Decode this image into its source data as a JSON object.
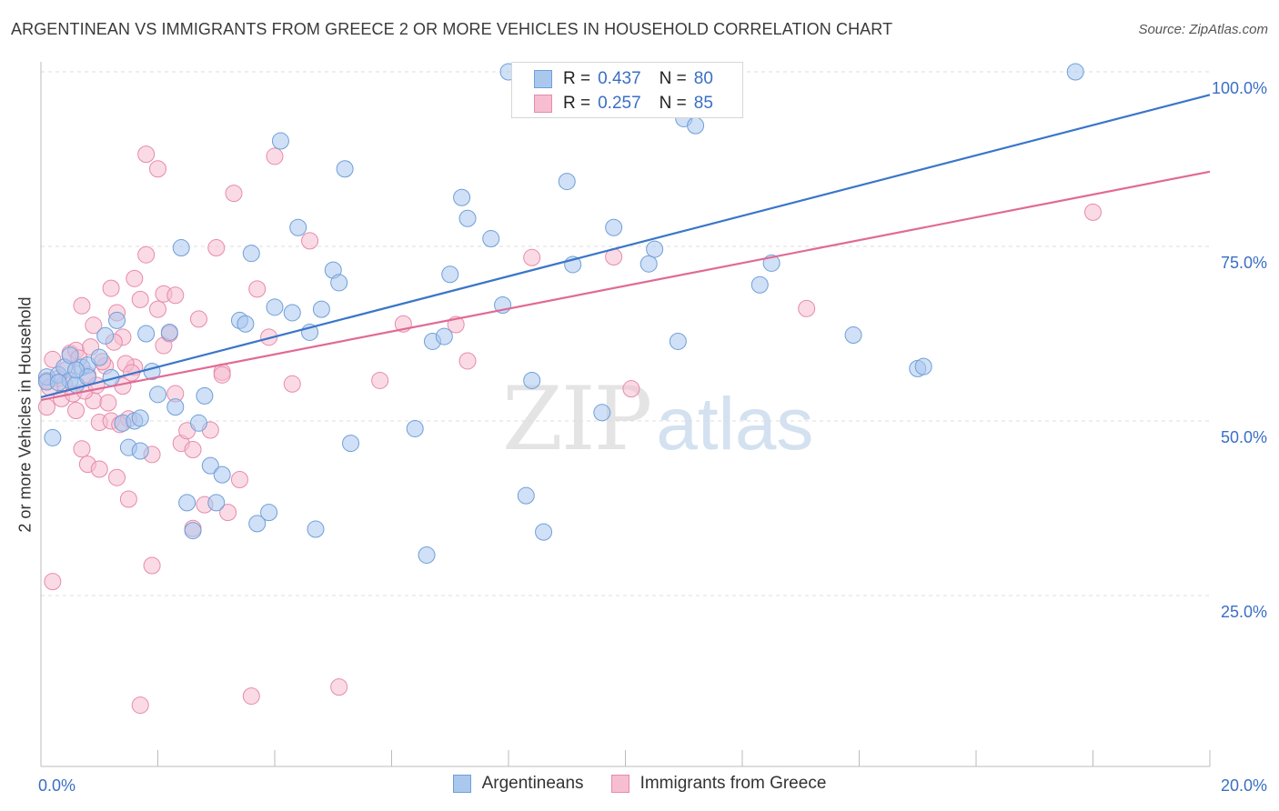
{
  "title": "ARGENTINEAN VS IMMIGRANTS FROM GREECE 2 OR MORE VEHICLES IN HOUSEHOLD CORRELATION CHART",
  "source": "Source: ZipAtlas.com",
  "watermark": {
    "zip": "ZIP",
    "atlas": "atlas"
  },
  "legend_top": {
    "rows": [
      {
        "r_label": "R =",
        "r_value": "0.437",
        "n_label": "N =",
        "n_value": "80"
      },
      {
        "r_label": "R =",
        "r_value": "0.257",
        "n_label": "N =",
        "n_value": "85"
      }
    ]
  },
  "colors": {
    "blue_fill": "#aac7ee",
    "blue_stroke": "#6f9fd8",
    "blue_line": "#3a76c9",
    "pink_fill": "#f6bed0",
    "pink_stroke": "#e88aab",
    "pink_line": "#e06a95",
    "tick_label": "#3a6fc4",
    "grid": "#dddddd"
  },
  "chart_data": {
    "type": "scatter",
    "title": "ARGENTINEAN VS IMMIGRANTS FROM GREECE 2 OR MORE VEHICLES IN HOUSEHOLD CORRELATION CHART",
    "ylabel": "2 or more Vehicles in Household",
    "xlabel": "",
    "xlim": [
      0,
      20
    ],
    "ylim": [
      0,
      100
    ],
    "x_tick_labels": [
      "0.0%",
      "20.0%"
    ],
    "y_tick_labels": [
      "100.0%",
      "75.0%",
      "50.0%",
      "25.0%"
    ],
    "y_ticks": [
      100,
      75,
      50,
      25
    ],
    "grid": "horizontal dashed",
    "legend_placement": "top-center and bottom",
    "series": [
      {
        "name": "Argentineans",
        "r": 0.437,
        "n": 80,
        "trend": {
          "x": [
            0,
            20
          ],
          "y": [
            53.4,
            96.7
          ]
        },
        "points": [
          [
            0.1,
            56.3
          ],
          [
            0.1,
            55.6
          ],
          [
            0.2,
            47.6
          ],
          [
            0.3,
            56.6
          ],
          [
            0.4,
            57.7
          ],
          [
            0.5,
            59.4
          ],
          [
            0.5,
            55.8
          ],
          [
            0.6,
            55.2
          ],
          [
            0.7,
            57.7
          ],
          [
            0.8,
            58.0
          ],
          [
            0.8,
            56.3
          ],
          [
            1.0,
            59.1
          ],
          [
            1.1,
            62.2
          ],
          [
            1.3,
            64.4
          ],
          [
            1.4,
            49.7
          ],
          [
            1.5,
            46.2
          ],
          [
            1.6,
            50.0
          ],
          [
            1.7,
            45.7
          ],
          [
            1.7,
            50.4
          ],
          [
            1.8,
            62.5
          ],
          [
            1.9,
            57.1
          ],
          [
            2.0,
            53.8
          ],
          [
            2.2,
            62.7
          ],
          [
            2.3,
            52.0
          ],
          [
            2.4,
            74.8
          ],
          [
            2.5,
            38.3
          ],
          [
            2.6,
            34.3
          ],
          [
            2.7,
            49.7
          ],
          [
            2.8,
            53.6
          ],
          [
            2.9,
            43.6
          ],
          [
            3.0,
            38.3
          ],
          [
            3.1,
            42.3
          ],
          [
            3.4,
            64.4
          ],
          [
            3.5,
            63.9
          ],
          [
            3.6,
            74.0
          ],
          [
            3.7,
            35.3
          ],
          [
            3.9,
            36.9
          ],
          [
            4.0,
            66.3
          ],
          [
            4.1,
            90.1
          ],
          [
            4.3,
            65.5
          ],
          [
            4.4,
            77.7
          ],
          [
            4.6,
            62.7
          ],
          [
            4.7,
            34.5
          ],
          [
            4.8,
            66.0
          ],
          [
            5.0,
            71.6
          ],
          [
            5.1,
            69.8
          ],
          [
            5.2,
            86.1
          ],
          [
            5.3,
            46.8
          ],
          [
            6.4,
            48.9
          ],
          [
            6.6,
            30.8
          ],
          [
            6.7,
            61.4
          ],
          [
            6.9,
            62.1
          ],
          [
            7.0,
            71.0
          ],
          [
            7.2,
            82.0
          ],
          [
            7.3,
            79.0
          ],
          [
            7.7,
            76.1
          ],
          [
            7.9,
            66.6
          ],
          [
            8.0,
            100.0
          ],
          [
            8.2,
            95.3
          ],
          [
            8.3,
            39.3
          ],
          [
            8.4,
            55.8
          ],
          [
            8.6,
            34.1
          ],
          [
            9.0,
            84.3
          ],
          [
            9.1,
            72.4
          ],
          [
            9.6,
            51.2
          ],
          [
            9.8,
            77.7
          ],
          [
            10.4,
            72.5
          ],
          [
            10.5,
            74.6
          ],
          [
            10.9,
            61.4
          ],
          [
            11.0,
            93.3
          ],
          [
            11.2,
            92.3
          ],
          [
            12.3,
            69.5
          ],
          [
            12.5,
            72.6
          ],
          [
            13.9,
            62.3
          ],
          [
            15.0,
            57.5
          ],
          [
            15.1,
            57.8
          ],
          [
            17.7,
            100.0
          ],
          [
            0.3,
            55.5
          ],
          [
            0.6,
            57.3
          ],
          [
            1.2,
            56.2
          ]
        ]
      },
      {
        "name": "Immigrants from Greece",
        "r": 0.257,
        "n": 85,
        "trend": {
          "x": [
            0,
            20
          ],
          "y": [
            53.0,
            85.7
          ]
        },
        "points": [
          [
            0.1,
            52.0
          ],
          [
            0.1,
            55.8
          ],
          [
            0.2,
            27.0
          ],
          [
            0.2,
            58.8
          ],
          [
            0.3,
            56.1
          ],
          [
            0.4,
            55.3
          ],
          [
            0.5,
            59.7
          ],
          [
            0.6,
            60.1
          ],
          [
            0.6,
            51.5
          ],
          [
            0.7,
            66.5
          ],
          [
            0.7,
            46.0
          ],
          [
            0.8,
            43.8
          ],
          [
            0.8,
            56.6
          ],
          [
            0.9,
            63.7
          ],
          [
            0.9,
            52.9
          ],
          [
            1.0,
            49.8
          ],
          [
            1.0,
            43.1
          ],
          [
            1.1,
            57.9
          ],
          [
            1.2,
            50.0
          ],
          [
            1.2,
            69.0
          ],
          [
            1.3,
            41.9
          ],
          [
            1.3,
            65.5
          ],
          [
            1.4,
            62.0
          ],
          [
            1.4,
            55.0
          ],
          [
            1.5,
            38.8
          ],
          [
            1.5,
            50.3
          ],
          [
            1.6,
            57.7
          ],
          [
            1.6,
            70.4
          ],
          [
            1.7,
            67.4
          ],
          [
            1.7,
            9.3
          ],
          [
            1.8,
            88.2
          ],
          [
            1.8,
            73.8
          ],
          [
            1.9,
            45.2
          ],
          [
            1.9,
            29.3
          ],
          [
            2.0,
            86.1
          ],
          [
            2.0,
            66.0
          ],
          [
            2.1,
            60.8
          ],
          [
            2.1,
            68.2
          ],
          [
            2.2,
            62.5
          ],
          [
            2.3,
            68.0
          ],
          [
            2.3,
            53.9
          ],
          [
            2.4,
            46.8
          ],
          [
            2.5,
            48.6
          ],
          [
            2.6,
            34.6
          ],
          [
            2.6,
            45.9
          ],
          [
            2.7,
            64.6
          ],
          [
            2.8,
            38.0
          ],
          [
            2.9,
            48.7
          ],
          [
            3.0,
            74.8
          ],
          [
            3.1,
            57.0
          ],
          [
            3.1,
            56.6
          ],
          [
            3.2,
            36.9
          ],
          [
            3.3,
            82.6
          ],
          [
            3.4,
            41.6
          ],
          [
            3.6,
            10.6
          ],
          [
            3.7,
            68.9
          ],
          [
            3.9,
            62.0
          ],
          [
            4.0,
            87.9
          ],
          [
            4.3,
            55.3
          ],
          [
            4.6,
            75.8
          ],
          [
            5.1,
            11.9
          ],
          [
            5.8,
            55.8
          ],
          [
            6.2,
            63.9
          ],
          [
            7.1,
            63.8
          ],
          [
            7.3,
            58.6
          ],
          [
            8.5,
            100.0
          ],
          [
            8.4,
            73.4
          ],
          [
            9.8,
            73.5
          ],
          [
            10.1,
            54.6
          ],
          [
            13.1,
            66.1
          ],
          [
            18.0,
            79.9
          ],
          [
            0.15,
            54.8
          ],
          [
            0.35,
            53.2
          ],
          [
            0.45,
            57.4
          ],
          [
            0.55,
            53.9
          ],
          [
            0.65,
            59.0
          ],
          [
            0.75,
            54.3
          ],
          [
            0.85,
            60.6
          ],
          [
            0.95,
            55.1
          ],
          [
            1.05,
            58.5
          ],
          [
            1.15,
            52.6
          ],
          [
            1.25,
            61.3
          ],
          [
            1.35,
            49.5
          ],
          [
            1.45,
            58.2
          ],
          [
            1.55,
            56.9
          ]
        ]
      }
    ]
  },
  "bottom_legend": [
    "Argentineans",
    "Immigrants from Greece"
  ]
}
